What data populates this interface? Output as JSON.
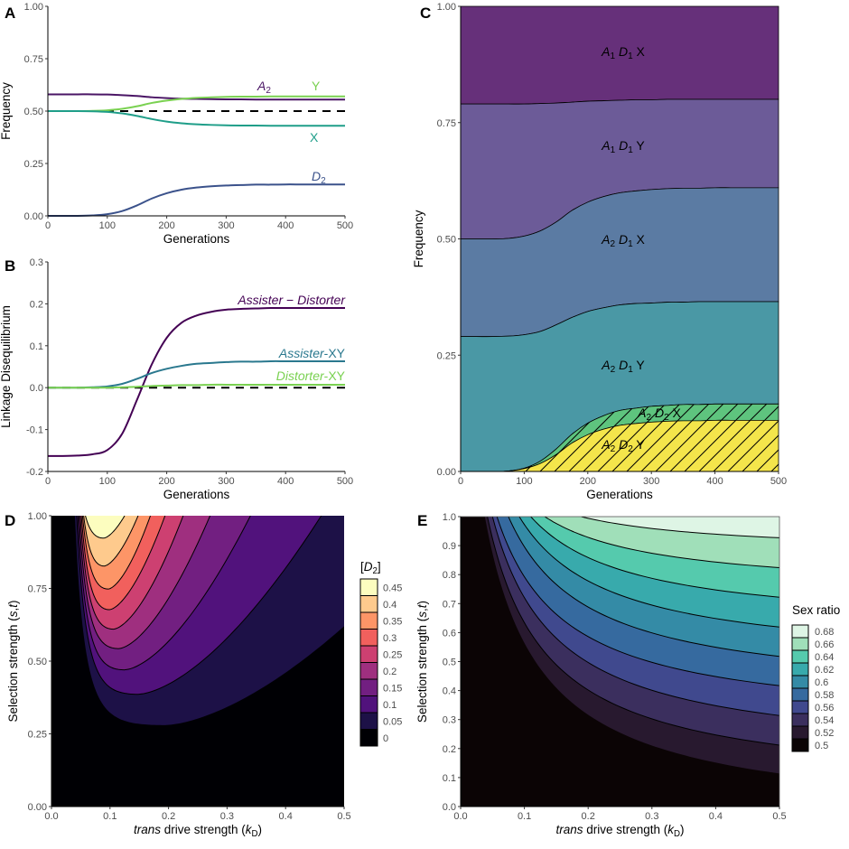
{
  "panel_letters": [
    "A",
    "B",
    "C",
    "D",
    "E"
  ],
  "chart_data": [
    {
      "panel": "A",
      "type": "line",
      "xlabel": "Generations",
      "ylabel": "Frequency",
      "xlim": [
        0,
        500
      ],
      "ylim": [
        0,
        1
      ],
      "xticks": [
        0,
        100,
        200,
        300,
        400,
        500
      ],
      "xtick_labels": [
        "0",
        "100",
        "200",
        "300",
        "400",
        "500"
      ],
      "yticks": [
        0,
        0.25,
        0.5,
        0.75,
        1
      ],
      "ytick_labels": [
        "0.00",
        "0.25",
        "0.50",
        "0.75",
        "1.00"
      ],
      "reference_line": {
        "y": 0.5,
        "style": "dashed",
        "color": "#000000"
      },
      "x": [
        0,
        25,
        50,
        75,
        100,
        125,
        150,
        175,
        200,
        225,
        250,
        275,
        300,
        325,
        350,
        375,
        400,
        425,
        450,
        475,
        500
      ],
      "series": [
        {
          "name": "A2",
          "color": "#4a1565",
          "values": [
            0.58,
            0.58,
            0.58,
            0.58,
            0.579,
            0.576,
            0.572,
            0.566,
            0.562,
            0.559,
            0.558,
            0.557,
            0.556,
            0.556,
            0.555,
            0.555,
            0.555,
            0.555,
            0.555,
            0.555,
            0.555
          ]
        },
        {
          "name": "Y",
          "color": "#7ad151",
          "values": [
            0.5,
            0.5,
            0.5,
            0.501,
            0.504,
            0.511,
            0.523,
            0.539,
            0.55,
            0.558,
            0.563,
            0.566,
            0.568,
            0.569,
            0.569,
            0.57,
            0.57,
            0.57,
            0.57,
            0.57,
            0.57
          ]
        },
        {
          "name": "X",
          "color": "#1f9e89",
          "values": [
            0.5,
            0.5,
            0.5,
            0.499,
            0.496,
            0.489,
            0.477,
            0.462,
            0.45,
            0.442,
            0.437,
            0.434,
            0.432,
            0.431,
            0.431,
            0.43,
            0.43,
            0.43,
            0.43,
            0.43,
            0.43
          ]
        },
        {
          "name": "D2",
          "color": "#3b528b",
          "values": [
            0,
            0,
            0,
            0.002,
            0.008,
            0.023,
            0.05,
            0.083,
            0.108,
            0.125,
            0.135,
            0.141,
            0.145,
            0.147,
            0.149,
            0.149,
            0.15,
            0.15,
            0.15,
            0.15,
            0.15
          ]
        }
      ]
    },
    {
      "panel": "B",
      "type": "line",
      "xlabel": "Generations",
      "ylabel": "Linkage Disequilibrium",
      "xlim": [
        0,
        500
      ],
      "ylim": [
        -0.2,
        0.3
      ],
      "xticks": [
        0,
        100,
        200,
        300,
        400,
        500
      ],
      "xtick_labels": [
        "0",
        "100",
        "200",
        "300",
        "400",
        "500"
      ],
      "yticks": [
        -0.2,
        -0.1,
        0,
        0.1,
        0.2,
        0.3
      ],
      "ytick_labels": [
        "-0.2",
        "-0.1",
        "0.0",
        "0.1",
        "0.2",
        "0.3"
      ],
      "reference_line": {
        "y": 0,
        "style": "dashed",
        "color": "#000000"
      },
      "x": [
        0,
        25,
        50,
        75,
        100,
        125,
        150,
        175,
        200,
        225,
        250,
        275,
        300,
        325,
        350,
        375,
        400,
        425,
        450,
        475,
        500
      ],
      "series": [
        {
          "name": "Assister − Distorter",
          "color": "#440154",
          "values": [
            -0.163,
            -0.163,
            -0.162,
            -0.159,
            -0.149,
            -0.11,
            -0.029,
            0.056,
            0.119,
            0.155,
            0.172,
            0.181,
            0.186,
            0.188,
            0.189,
            0.19,
            0.19,
            0.19,
            0.19,
            0.19,
            0.19
          ]
        },
        {
          "name": "Assister-XY",
          "color": "#2a788e",
          "values": [
            0,
            0,
            0,
            0.001,
            0.003,
            0.009,
            0.021,
            0.035,
            0.045,
            0.052,
            0.057,
            0.059,
            0.061,
            0.062,
            0.062,
            0.063,
            0.063,
            0.063,
            0.063,
            0.063,
            0.063
          ]
        },
        {
          "name": "Distorter-XY",
          "color": "#7ad151",
          "values": [
            0,
            0,
            0,
            0,
            0,
            0.001,
            0.002,
            0.004,
            0.005,
            0.006,
            0.006,
            0.007,
            0.007,
            0.007,
            0.007,
            0.007,
            0.007,
            0.007,
            0.007,
            0.007,
            0.007
          ]
        }
      ]
    },
    {
      "panel": "C",
      "type": "area",
      "xlabel": "Generations",
      "ylabel": "Frequency",
      "xlim": [
        0,
        500
      ],
      "ylim": [
        0,
        1
      ],
      "xticks": [
        0,
        100,
        200,
        300,
        400,
        500
      ],
      "xtick_labels": [
        "0",
        "100",
        "200",
        "300",
        "400",
        "500"
      ],
      "yticks": [
        0,
        0.25,
        0.5,
        0.75,
        1
      ],
      "ytick_labels": [
        "0.00",
        "0.25",
        "0.50",
        "0.75",
        "1.00"
      ],
      "x": [
        0,
        25,
        50,
        75,
        100,
        125,
        150,
        175,
        200,
        225,
        250,
        275,
        300,
        325,
        350,
        375,
        400,
        425,
        450,
        475,
        500
      ],
      "stacked_layers_cumulative_upper": [
        {
          "name": "A2 D2 Y",
          "color": "#f4e54b",
          "hatched": true,
          "values": [
            0,
            0,
            0,
            0.001,
            0.006,
            0.017,
            0.036,
            0.061,
            0.079,
            0.091,
            0.099,
            0.103,
            0.106,
            0.108,
            0.109,
            0.109,
            0.11,
            0.11,
            0.11,
            0.11,
            0.11
          ]
        },
        {
          "name": "A2 D2 X",
          "color": "#5ec47e",
          "hatched": true,
          "values": [
            0,
            0,
            0,
            0.001,
            0.007,
            0.022,
            0.048,
            0.08,
            0.104,
            0.12,
            0.131,
            0.136,
            0.14,
            0.142,
            0.144,
            0.144,
            0.145,
            0.145,
            0.145,
            0.145,
            0.145
          ]
        },
        {
          "name": "A2 D1 Y",
          "color": "#4a98a5",
          "hatched": false,
          "values": [
            0.29,
            0.29,
            0.29,
            0.291,
            0.294,
            0.301,
            0.315,
            0.331,
            0.344,
            0.352,
            0.358,
            0.361,
            0.362,
            0.364,
            0.364,
            0.365,
            0.365,
            0.365,
            0.365,
            0.365,
            0.365
          ]
        },
        {
          "name": "A2 D1 X",
          "color": "#5b7ba3",
          "hatched": false,
          "values": [
            0.5,
            0.5,
            0.5,
            0.501,
            0.506,
            0.517,
            0.536,
            0.561,
            0.579,
            0.591,
            0.599,
            0.603,
            0.606,
            0.608,
            0.609,
            0.609,
            0.61,
            0.61,
            0.61,
            0.61,
            0.61
          ]
        },
        {
          "name": "A1 D1 Y",
          "color": "#6c5b98",
          "hatched": false,
          "values": [
            0.79,
            0.79,
            0.79,
            0.79,
            0.79,
            0.791,
            0.792,
            0.794,
            0.796,
            0.797,
            0.798,
            0.799,
            0.799,
            0.8,
            0.8,
            0.8,
            0.8,
            0.8,
            0.8,
            0.8,
            0.8
          ]
        },
        {
          "name": "A1 D1 X",
          "color": "#66307a",
          "hatched": false,
          "values": [
            1,
            1,
            1,
            1,
            1,
            1,
            1,
            1,
            1,
            1,
            1,
            1,
            1,
            1,
            1,
            1,
            1,
            1,
            1,
            1,
            1
          ]
        }
      ]
    },
    {
      "panel": "D",
      "type": "heatmap",
      "xlabel": "trans drive strength (kD)",
      "ylabel": "Selection strength (s,t)",
      "xlim": [
        0,
        0.5
      ],
      "ylim": [
        0,
        1
      ],
      "xticks": [
        0,
        0.1,
        0.2,
        0.3,
        0.4,
        0.5
      ],
      "xtick_labels": [
        "0.0",
        "0.1",
        "0.2",
        "0.3",
        "0.4",
        "0.5"
      ],
      "yticks": [
        0,
        0.25,
        0.5,
        0.75,
        1
      ],
      "ytick_labels": [
        "0.00",
        "0.25",
        "0.50",
        "0.75",
        "1.00"
      ],
      "legend_title": "[D2]",
      "legend_placement": "right",
      "levels": [
        {
          "label": "0",
          "color": "#000004"
        },
        {
          "label": "0.05",
          "color": "#1d1147",
          "contour": {
            "left_top_k": 0.04,
            "min_k": 0.194,
            "min_s": 0.28,
            "exit": [
              0.5,
              0.62
            ]
          }
        },
        {
          "label": "0.1",
          "color": "#51127c",
          "contour": {
            "left_top_k": 0.043,
            "min_k": 0.148,
            "min_s": 0.386,
            "exit": [
              0.461,
              1
            ]
          }
        },
        {
          "label": "0.15",
          "color": "#721f81",
          "contour": {
            "left_top_k": 0.045,
            "min_k": 0.125,
            "min_s": 0.47,
            "exit": [
              0.34,
              1
            ]
          }
        },
        {
          "label": "0.2",
          "color": "#9f2f7f",
          "contour": {
            "left_top_k": 0.047,
            "min_k": 0.115,
            "min_s": 0.543,
            "exit": [
              0.271,
              1
            ]
          }
        },
        {
          "label": "0.25",
          "color": "#cd4071",
          "contour": {
            "left_top_k": 0.049,
            "min_k": 0.106,
            "min_s": 0.61,
            "exit": [
              0.225,
              1
            ]
          }
        },
        {
          "label": "0.3",
          "color": "#f1605d",
          "contour": {
            "left_top_k": 0.051,
            "min_k": 0.099,
            "min_s": 0.677,
            "exit": [
              0.194,
              1
            ]
          }
        },
        {
          "label": "0.35",
          "color": "#fd9567",
          "contour": {
            "left_top_k": 0.053,
            "min_k": 0.097,
            "min_s": 0.748,
            "exit": [
              0.169,
              1
            ]
          }
        },
        {
          "label": "0.4",
          "color": "#feca8d",
          "contour": {
            "left_top_k": 0.055,
            "min_k": 0.09,
            "min_s": 0.827,
            "exit": [
              0.148,
              1
            ]
          }
        },
        {
          "label": "0.45",
          "color": "#fcfdbf",
          "contour": {
            "left_top_k": 0.058,
            "min_k": 0.089,
            "min_s": 0.923,
            "exit": [
              0.125,
              1
            ]
          }
        }
      ]
    },
    {
      "panel": "E",
      "type": "heatmap",
      "xlabel": "trans drive strength (kD)",
      "ylabel": "Selection strength (s,t)",
      "xlim": [
        0,
        0.5
      ],
      "ylim": [
        0,
        1
      ],
      "xticks": [
        0,
        0.1,
        0.2,
        0.3,
        0.4,
        0.5
      ],
      "xtick_labels": [
        "0.0",
        "0.1",
        "0.2",
        "0.3",
        "0.4",
        "0.5"
      ],
      "yticks": [
        0,
        0.1,
        0.2,
        0.3,
        0.4,
        0.5,
        0.6,
        0.7,
        0.8,
        0.9,
        1
      ],
      "ytick_labels": [
        "0.0",
        "0.1",
        "0.2",
        "0.3",
        "0.4",
        "0.5",
        "0.6",
        "0.7",
        "0.8",
        "0.9",
        "1.0"
      ],
      "legend_title": "Sex ratio",
      "legend_placement": "right",
      "levels": [
        {
          "label": "0.5",
          "color": "#0b0405"
        },
        {
          "label": "0.52",
          "color": "#28192f",
          "contour": {
            "top_k": 0.038,
            "s_at_right": 0.114
          }
        },
        {
          "label": "0.54",
          "color": "#3b2f5e",
          "contour": {
            "top_k": 0.042,
            "s_at_right": 0.212
          }
        },
        {
          "label": "0.56",
          "color": "#40498e",
          "contour": {
            "top_k": 0.05,
            "s_at_right": 0.314
          }
        },
        {
          "label": "0.58",
          "color": "#366a9f",
          "contour": {
            "top_k": 0.057,
            "s_at_right": 0.417
          }
        },
        {
          "label": "0.6",
          "color": "#348ba6",
          "contour": {
            "top_k": 0.075,
            "s_at_right": 0.518
          }
        },
        {
          "label": "0.62",
          "color": "#38aaac",
          "contour": {
            "top_k": 0.092,
            "s_at_right": 0.619
          }
        },
        {
          "label": "0.64",
          "color": "#55caad",
          "contour": {
            "top_k": 0.11,
            "s_at_right": 0.722
          }
        },
        {
          "label": "0.66",
          "color": "#a0dfb9",
          "contour": {
            "top_k": 0.132,
            "s_at_right": 0.824
          }
        },
        {
          "label": "0.68",
          "color": "#def5e5",
          "contour": {
            "top_k": 0.189,
            "s_at_right": 0.927
          }
        }
      ]
    }
  ]
}
